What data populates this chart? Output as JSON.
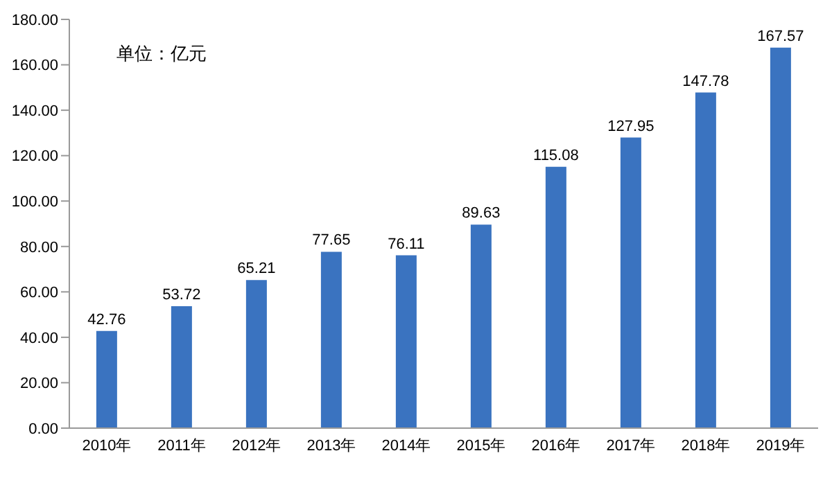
{
  "chart_data": {
    "type": "bar",
    "categories": [
      "2010年",
      "2011年",
      "2012年",
      "2013年",
      "2014年",
      "2015年",
      "2016年",
      "2017年",
      "2018年",
      "2019年"
    ],
    "values": [
      42.76,
      53.72,
      65.21,
      77.65,
      76.11,
      89.63,
      115.08,
      127.95,
      147.78,
      167.57
    ],
    "color": "#3a73c0",
    "ylim": [
      0,
      180
    ],
    "yticks": [
      {
        "value": 0,
        "label": "0.00"
      },
      {
        "value": 20,
        "label": "20.00"
      },
      {
        "value": 40,
        "label": "40.00"
      },
      {
        "value": 60,
        "label": "60.00"
      },
      {
        "value": 80,
        "label": "80.00"
      },
      {
        "value": 100,
        "label": "100.00"
      },
      {
        "value": 120,
        "label": "120.00"
      },
      {
        "value": 140,
        "label": "140.00"
      },
      {
        "value": 160,
        "label": "160.00"
      },
      {
        "value": 180,
        "label": "180.00"
      }
    ],
    "data_labels": true,
    "annotations": [
      "单位：亿元"
    ]
  }
}
